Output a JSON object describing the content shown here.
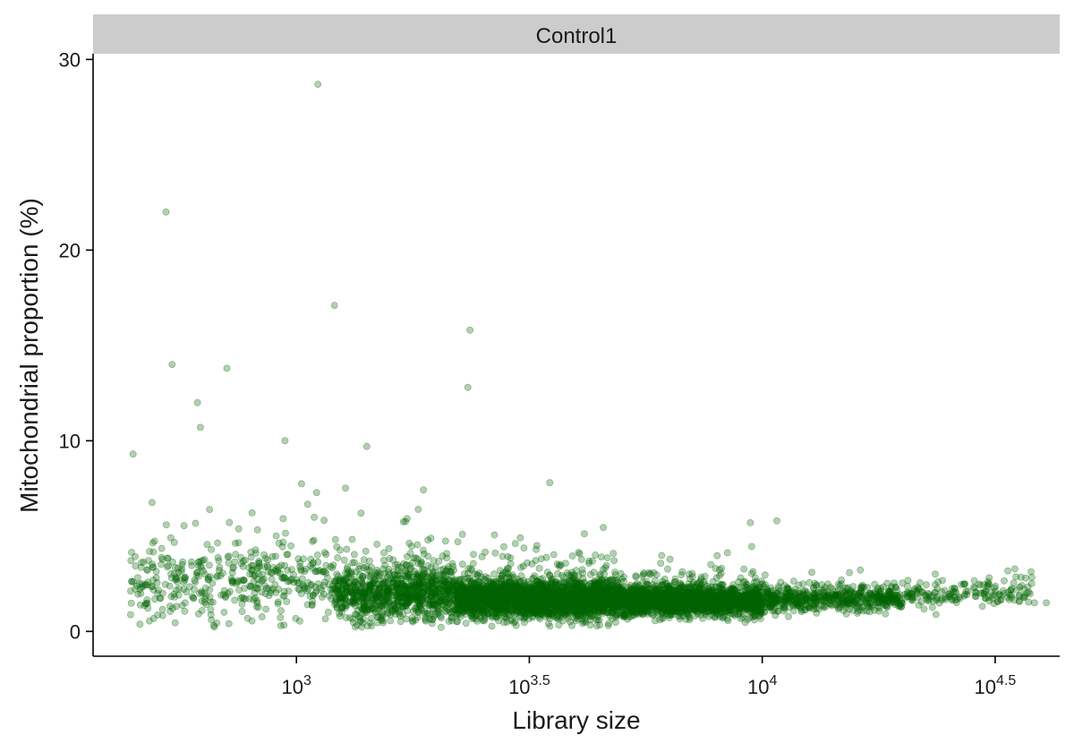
{
  "chart_data": {
    "type": "scatter",
    "facet_label": "Control1",
    "xlabel": "Library size",
    "ylabel": "Mitochondrial proportion (%)",
    "x_scale": "log10",
    "xlim": [
      366,
      43500
    ],
    "ylim": [
      -1.3,
      30.3
    ],
    "x_ticks": [
      {
        "value": 1000,
        "base": "10",
        "exp": "3"
      },
      {
        "value": 3162.28,
        "base": "10",
        "exp": "3.5"
      },
      {
        "value": 10000,
        "base": "10",
        "exp": "4"
      },
      {
        "value": 31622.8,
        "base": "10",
        "exp": "4.5"
      }
    ],
    "y_ticks": [
      0,
      10,
      20,
      30
    ],
    "point_color": "#006400",
    "point_opacity": 0.3,
    "grid": false,
    "legend": "none",
    "notable_points": [
      {
        "x": 1112,
        "y": 28.7
      },
      {
        "x": 525,
        "y": 22.0
      },
      {
        "x": 1207,
        "y": 17.1
      },
      {
        "x": 2358,
        "y": 15.8
      },
      {
        "x": 541,
        "y": 14.0
      },
      {
        "x": 709,
        "y": 13.8
      },
      {
        "x": 2333,
        "y": 12.8
      },
      {
        "x": 613,
        "y": 12.0
      },
      {
        "x": 622,
        "y": 10.7
      },
      {
        "x": 945,
        "y": 10.0
      },
      {
        "x": 1416,
        "y": 9.7
      },
      {
        "x": 446,
        "y": 9.3
      },
      {
        "x": 3499,
        "y": 7.8
      },
      {
        "x": 10750,
        "y": 5.8
      },
      {
        "x": 9431,
        "y": 5.7
      },
      {
        "x": 36790,
        "y": 2.8
      },
      {
        "x": 40730,
        "y": 1.5
      },
      {
        "x": 38390,
        "y": 1.5
      }
    ],
    "bulk_distribution": [
      {
        "x_from": 440,
        "x_to": 1200,
        "y_center": 2.6,
        "y_spread": 1.9,
        "count": 420
      },
      {
        "x_from": 1200,
        "x_to": 2200,
        "y_center": 2.0,
        "y_spread": 1.3,
        "count": 900
      },
      {
        "x_from": 2200,
        "x_to": 5000,
        "y_center": 1.7,
        "y_spread": 0.9,
        "count": 2400
      },
      {
        "x_from": 5000,
        "x_to": 10000,
        "y_center": 1.6,
        "y_spread": 0.7,
        "count": 1700
      },
      {
        "x_from": 10000,
        "x_to": 20000,
        "y_center": 1.7,
        "y_spread": 0.6,
        "count": 550
      },
      {
        "x_from": 20000,
        "x_to": 38000,
        "y_center": 2.0,
        "y_spread": 0.6,
        "count": 170
      }
    ]
  }
}
